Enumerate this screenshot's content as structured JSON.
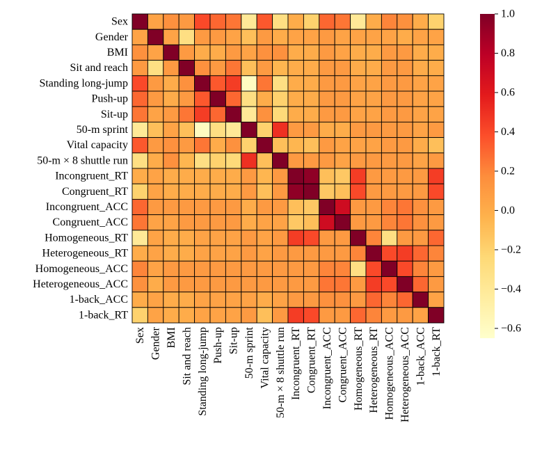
{
  "chart_data": {
    "type": "heatmap",
    "title": "",
    "xlabel": "",
    "ylabel": "",
    "labels": [
      "Sex",
      "Gender",
      "BMI",
      "Sit and reach",
      "Standing long-jump",
      "Push-up",
      "Sit-up",
      "50-m sprint",
      "Vital capacity",
      "50-m × 8 shuttle run",
      "Incongruent_RT",
      "Congruent_RT",
      "Incongruent_ACC",
      "Congruent_ACC",
      "Homogeneous_RT",
      "Heterogeneous_RT",
      "Homogeneous_ACC",
      "Heterogeneous_ACC",
      "1-back_ACC",
      "1-back_RT"
    ],
    "values": [
      [
        1.0,
        0.05,
        0.15,
        0.1,
        0.4,
        0.3,
        0.25,
        -0.4,
        0.35,
        -0.3,
        0.0,
        -0.2,
        0.3,
        0.25,
        -0.4,
        0.0,
        0.2,
        0.15,
        0.0,
        -0.2
      ],
      [
        0.05,
        1.0,
        0.05,
        -0.3,
        0.1,
        0.1,
        0.05,
        -0.1,
        0.1,
        0.0,
        0.05,
        0.05,
        0.1,
        0.05,
        0.05,
        0.05,
        0.05,
        0.0,
        0.05,
        0.05
      ],
      [
        0.15,
        0.05,
        1.0,
        0.1,
        0.0,
        0.0,
        0.1,
        0.05,
        0.15,
        0.15,
        0.0,
        0.0,
        0.1,
        0.05,
        0.0,
        0.0,
        0.1,
        0.1,
        0.0,
        0.0
      ],
      [
        0.1,
        -0.3,
        0.1,
        1.0,
        0.15,
        0.1,
        0.25,
        -0.1,
        0.1,
        -0.05,
        0.0,
        0.0,
        0.1,
        0.1,
        0.0,
        0.0,
        0.1,
        0.1,
        0.0,
        0.0
      ],
      [
        0.4,
        0.1,
        0.0,
        0.15,
        1.0,
        0.35,
        0.45,
        -0.6,
        0.25,
        -0.3,
        0.0,
        0.0,
        0.1,
        0.1,
        0.05,
        0.05,
        0.1,
        0.1,
        0.05,
        0.05
      ],
      [
        0.3,
        0.1,
        0.0,
        0.1,
        0.35,
        1.0,
        0.3,
        -0.3,
        0.0,
        -0.2,
        0.0,
        0.0,
        0.1,
        0.1,
        0.05,
        0.05,
        0.1,
        0.1,
        0.05,
        0.05
      ],
      [
        0.25,
        0.05,
        0.1,
        0.25,
        0.45,
        0.3,
        1.0,
        -0.4,
        0.15,
        -0.25,
        0.0,
        0.0,
        0.1,
        0.1,
        0.05,
        0.05,
        0.1,
        0.1,
        0.05,
        0.05
      ],
      [
        -0.4,
        -0.1,
        0.05,
        -0.1,
        -0.6,
        -0.3,
        -0.4,
        1.0,
        -0.2,
        0.5,
        0.1,
        0.1,
        0.0,
        0.0,
        0.1,
        0.1,
        0.1,
        0.1,
        0.05,
        0.1
      ],
      [
        0.35,
        0.1,
        0.15,
        0.1,
        0.25,
        0.0,
        0.15,
        -0.2,
        1.0,
        -0.1,
        -0.05,
        -0.1,
        0.1,
        0.05,
        0.05,
        0.05,
        0.1,
        0.1,
        0.0,
        -0.1
      ],
      [
        -0.3,
        0.0,
        0.15,
        -0.05,
        -0.3,
        -0.2,
        -0.25,
        0.5,
        -0.1,
        1.0,
        0.1,
        0.1,
        0.1,
        0.05,
        0.1,
        0.1,
        0.1,
        0.1,
        0.05,
        0.1
      ],
      [
        0.0,
        0.05,
        0.0,
        0.0,
        0.0,
        0.0,
        0.0,
        0.1,
        -0.05,
        0.1,
        1.0,
        0.95,
        -0.1,
        -0.15,
        0.45,
        0.1,
        0.1,
        0.1,
        0.1,
        0.45
      ],
      [
        -0.2,
        0.05,
        0.0,
        0.0,
        0.0,
        0.0,
        0.0,
        0.1,
        -0.1,
        0.1,
        0.95,
        1.0,
        -0.15,
        -0.1,
        0.4,
        0.1,
        0.1,
        0.1,
        0.1,
        0.4
      ],
      [
        0.3,
        0.1,
        0.1,
        0.1,
        0.1,
        0.1,
        0.1,
        0.0,
        0.1,
        0.1,
        -0.1,
        -0.15,
        1.0,
        0.7,
        0.1,
        0.1,
        0.2,
        0.25,
        0.15,
        0.1
      ],
      [
        0.25,
        0.05,
        0.05,
        0.1,
        0.1,
        0.1,
        0.1,
        0.0,
        0.05,
        0.05,
        -0.15,
        -0.1,
        0.7,
        1.0,
        0.1,
        0.1,
        0.2,
        0.25,
        0.15,
        0.1
      ],
      [
        -0.4,
        0.05,
        0.0,
        0.0,
        0.05,
        0.05,
        0.05,
        0.1,
        0.05,
        0.1,
        0.45,
        0.4,
        0.1,
        0.1,
        1.0,
        0.2,
        -0.3,
        0.1,
        0.1,
        0.3
      ],
      [
        0.0,
        0.05,
        0.0,
        0.0,
        0.05,
        0.05,
        0.05,
        0.1,
        0.05,
        0.1,
        0.1,
        0.1,
        0.1,
        0.1,
        0.2,
        1.0,
        0.4,
        0.45,
        0.3,
        0.2
      ],
      [
        0.2,
        0.05,
        0.1,
        0.1,
        0.1,
        0.1,
        0.1,
        0.1,
        0.1,
        0.1,
        0.1,
        0.1,
        0.2,
        0.2,
        -0.3,
        0.4,
        1.0,
        0.4,
        0.2,
        0.1
      ],
      [
        0.15,
        0.0,
        0.1,
        0.1,
        0.1,
        0.1,
        0.1,
        0.1,
        0.1,
        0.1,
        0.1,
        0.1,
        0.25,
        0.25,
        0.1,
        0.45,
        0.4,
        1.0,
        0.3,
        0.1
      ],
      [
        0.0,
        0.05,
        0.0,
        0.0,
        0.05,
        0.05,
        0.05,
        0.05,
        0.0,
        0.05,
        0.1,
        0.1,
        0.15,
        0.15,
        0.1,
        0.3,
        0.2,
        0.3,
        1.0,
        0.05
      ],
      [
        -0.2,
        0.05,
        0.0,
        0.0,
        0.05,
        0.05,
        0.05,
        0.1,
        -0.1,
        0.1,
        0.45,
        0.4,
        0.1,
        0.1,
        0.3,
        0.2,
        0.1,
        0.1,
        0.05,
        1.0
      ]
    ],
    "colorbar": {
      "vmin": -0.65,
      "vmax": 1.0,
      "ticks": [
        1.0,
        0.8,
        0.6,
        0.4,
        0.2,
        0.0,
        -0.2,
        -0.4,
        -0.6
      ],
      "tick_labels": [
        "1.0",
        "0.8",
        "0.6",
        "0.4",
        "0.2",
        "0.0",
        "−0.2",
        "−0.4",
        "−0.6"
      ],
      "colormap": "YlOrRd",
      "colors": [
        "#ffffcc",
        "#ffeda0",
        "#fed976",
        "#feb24c",
        "#fd8d3c",
        "#fc4e2a",
        "#e31a1c",
        "#bd0026",
        "#800026"
      ]
    },
    "grid": true,
    "legend": "colorbar-right"
  }
}
